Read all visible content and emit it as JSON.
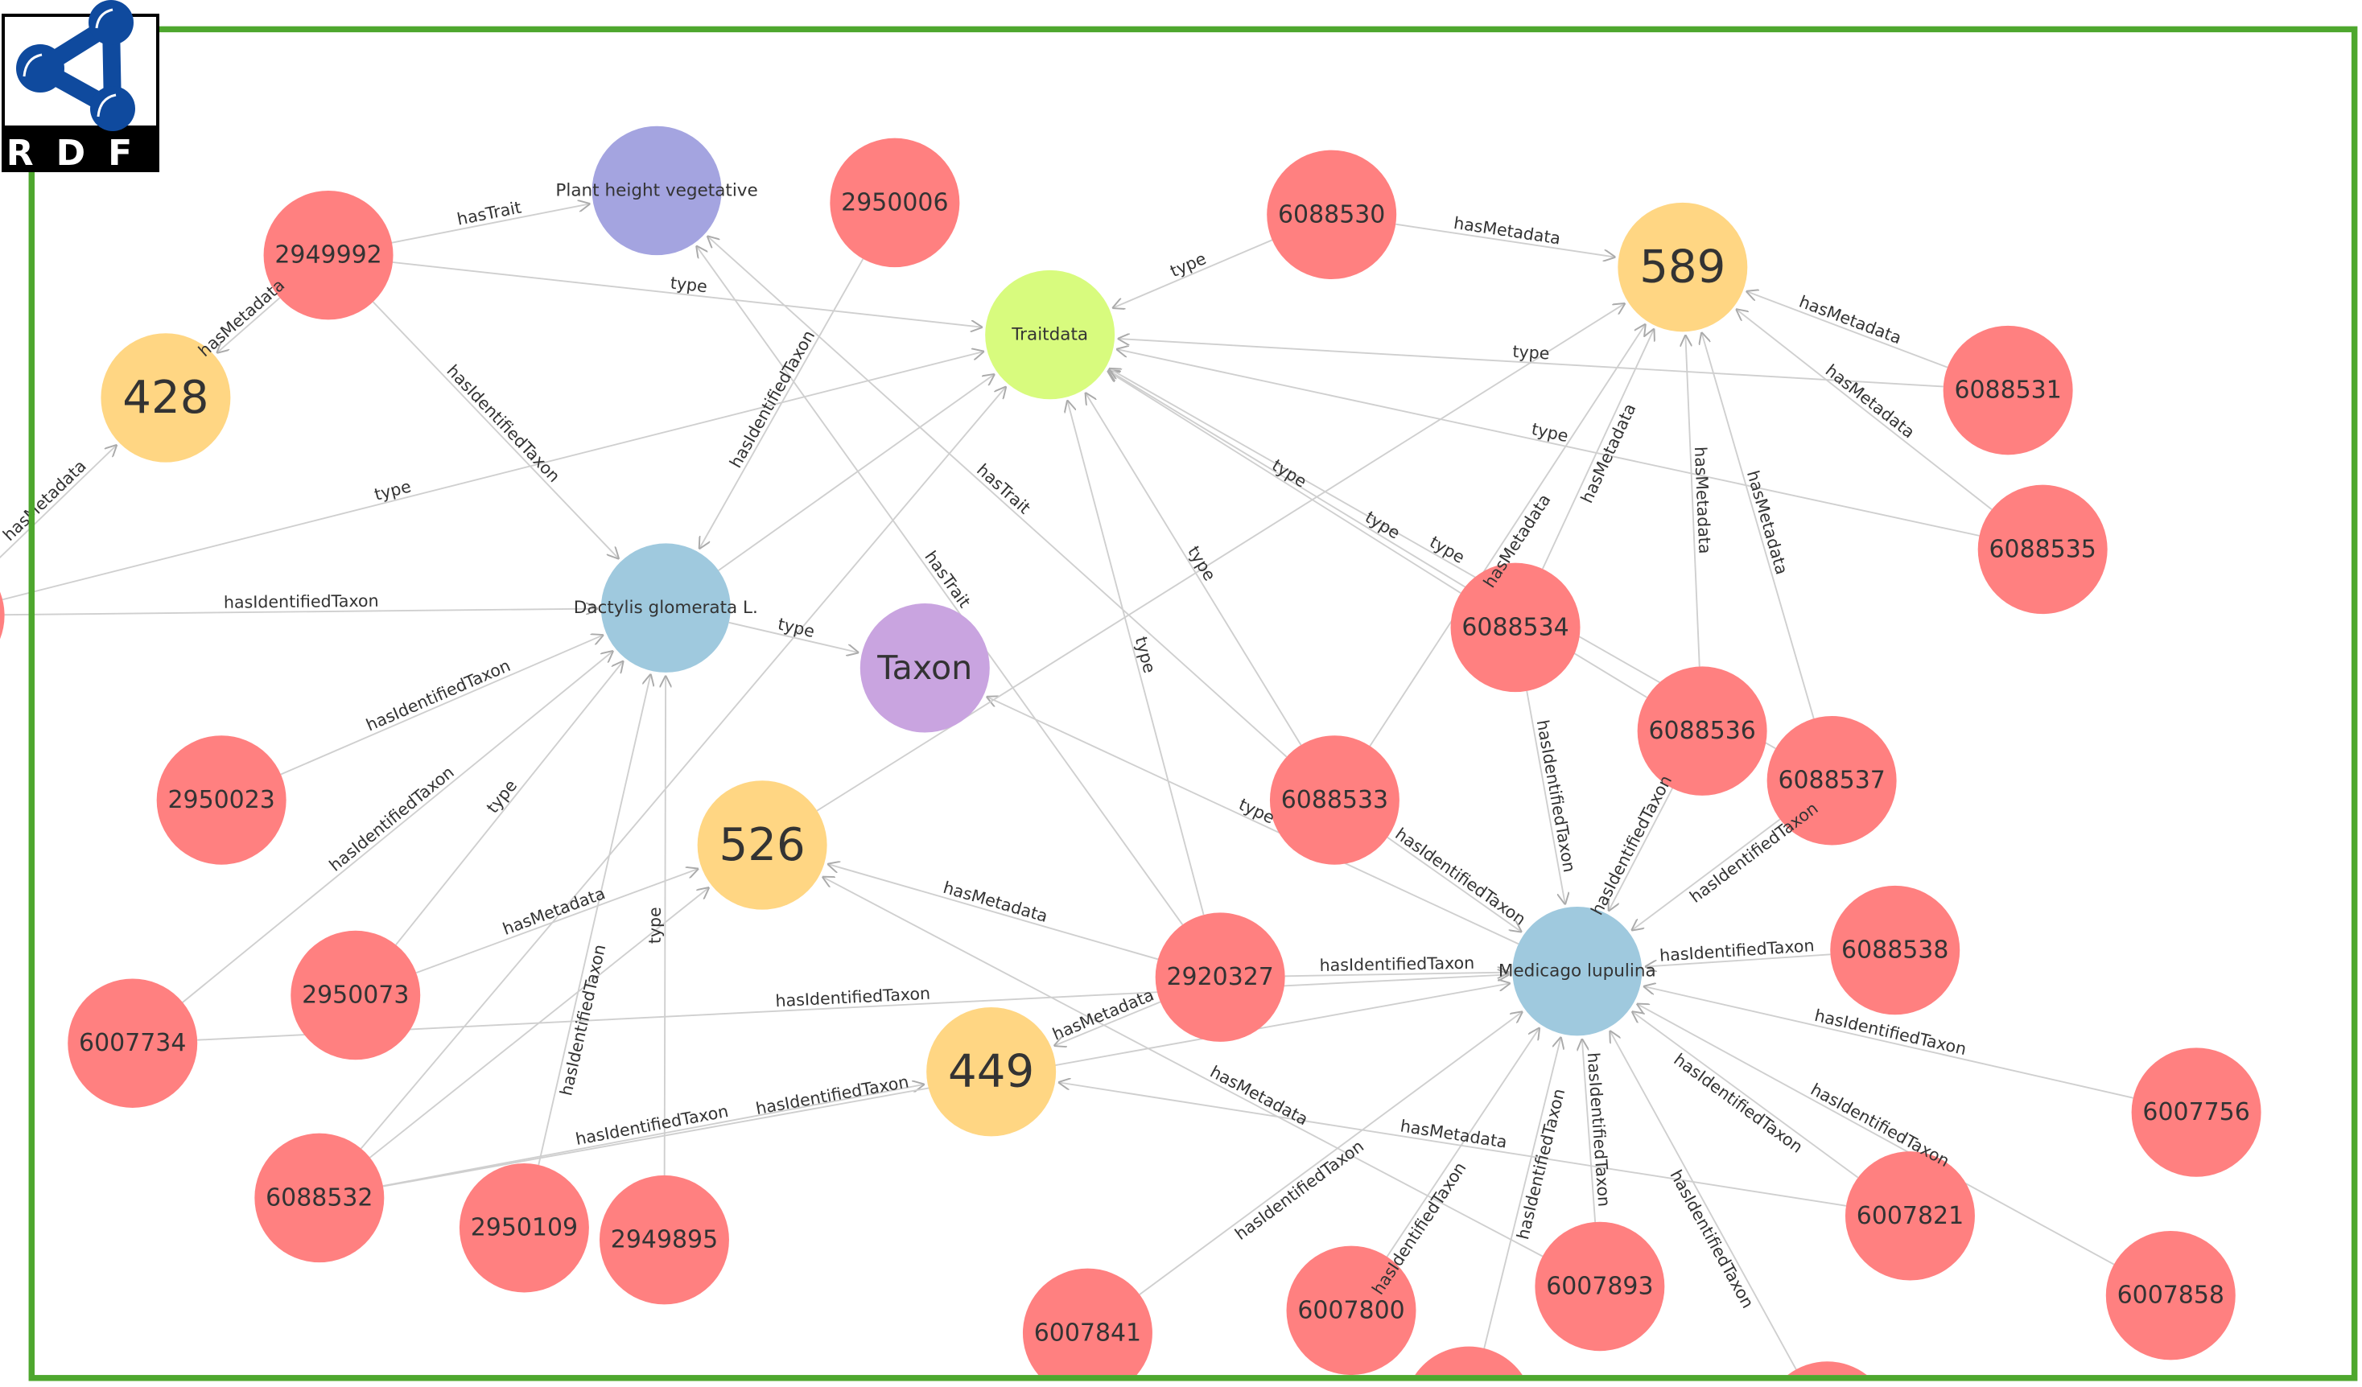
{
  "logo": {
    "text": "RDF",
    "color": "#0f4a9e"
  },
  "frame_color": "#4ea72e",
  "colors": {
    "resource": "#ff8080",
    "metadata": "#ffd683",
    "traitclass": "#d8fb7e",
    "trait": "#a4a4e0",
    "taxon": "#9fc9de",
    "taxonclass": "#c9a4e0",
    "edge": "#cfcfcf"
  },
  "nodes": [
    {
      "id": "2949992",
      "label": "2949992",
      "kind": "resource"
    },
    {
      "id": "ph",
      "label": "Plant height vegetative",
      "kind": "trait"
    },
    {
      "id": "2950006",
      "label": "2950006",
      "kind": "resource"
    },
    {
      "id": "traitdata",
      "label": "Traitdata",
      "kind": "traitclass"
    },
    {
      "id": "6088530",
      "label": "6088530",
      "kind": "resource"
    },
    {
      "id": "589",
      "label": "589",
      "kind": "metadata"
    },
    {
      "id": "6088531",
      "label": "6088531",
      "kind": "resource"
    },
    {
      "id": "428",
      "label": "428",
      "kind": "metadata"
    },
    {
      "id": "dactylis",
      "label": "Dactylis glomerata L.",
      "kind": "taxon"
    },
    {
      "id": "taxon",
      "label": "Taxon",
      "kind": "taxonclass"
    },
    {
      "id": "6088535",
      "label": "6088535",
      "kind": "resource"
    },
    {
      "id": "6088534",
      "label": "6088534",
      "kind": "resource"
    },
    {
      "id": "6088536",
      "label": "6088536",
      "kind": "resource"
    },
    {
      "id": "6088537",
      "label": "6088537",
      "kind": "resource"
    },
    {
      "id": "2950023",
      "label": "2950023",
      "kind": "resource"
    },
    {
      "id": "6088533",
      "label": "6088533",
      "kind": "resource"
    },
    {
      "id": "526",
      "label": "526",
      "kind": "metadata"
    },
    {
      "id": "2950073",
      "label": "2950073",
      "kind": "resource"
    },
    {
      "id": "2920327",
      "label": "2920327",
      "kind": "resource"
    },
    {
      "id": "medicago",
      "label": "Medicago lupulina",
      "kind": "taxon"
    },
    {
      "id": "6088538",
      "label": "6088538",
      "kind": "resource"
    },
    {
      "id": "6007734",
      "label": "6007734",
      "kind": "resource"
    },
    {
      "id": "449",
      "label": "449",
      "kind": "metadata"
    },
    {
      "id": "6007756",
      "label": "6007756",
      "kind": "resource"
    },
    {
      "id": "6088532",
      "label": "6088532",
      "kind": "resource"
    },
    {
      "id": "2950109",
      "label": "2950109",
      "kind": "resource"
    },
    {
      "id": "2949895",
      "label": "2949895",
      "kind": "resource"
    },
    {
      "id": "6007821",
      "label": "6007821",
      "kind": "resource"
    },
    {
      "id": "6007841",
      "label": "6007841",
      "kind": "resource"
    },
    {
      "id": "6007800",
      "label": "6007800",
      "kind": "resource"
    },
    {
      "id": "6007893",
      "label": "6007893",
      "kind": "resource"
    },
    {
      "id": "6007858",
      "label": "6007858",
      "kind": "resource"
    },
    {
      "id": "p1",
      "label": "",
      "kind": "resource"
    },
    {
      "id": "p2",
      "label": "",
      "kind": "resource"
    },
    {
      "id": "offleft",
      "label": "",
      "kind": "resource"
    }
  ],
  "edges": [
    {
      "s": "2949992",
      "t": "ph",
      "label": "hasTrait"
    },
    {
      "s": "2949992",
      "t": "traitdata",
      "label": "type"
    },
    {
      "s": "2949992",
      "t": "428",
      "label": "hasMetadata"
    },
    {
      "s": "2949992",
      "t": "dactylis",
      "label": "hasIdentifiedTaxon"
    },
    {
      "s": "2950006",
      "t": "dactylis",
      "label": "hasIdentifiedTaxon"
    },
    {
      "s": "offleft",
      "t": "428",
      "label": "hasMetadata"
    },
    {
      "s": "offleft",
      "t": "traitdata",
      "label": "type"
    },
    {
      "s": "offleft",
      "t": "dactylis",
      "label": "hasIdentifiedTaxon"
    },
    {
      "s": "6088530",
      "t": "traitdata",
      "label": "type"
    },
    {
      "s": "6088530",
      "t": "589",
      "label": "hasMetadata"
    },
    {
      "s": "6088531",
      "t": "589",
      "label": "hasMetadata"
    },
    {
      "s": "6088531",
      "t": "traitdata",
      "label": "type"
    },
    {
      "s": "6088535",
      "t": "589",
      "label": "hasMetadata"
    },
    {
      "s": "6088535",
      "t": "traitdata",
      "label": "type"
    },
    {
      "s": "6088534",
      "t": "traitdata",
      "label": "type"
    },
    {
      "s": "6088534",
      "t": "589",
      "label": "hasMetadata"
    },
    {
      "s": "6088534",
      "t": "medicago",
      "label": "hasIdentifiedTaxon"
    },
    {
      "s": "6088536",
      "t": "589",
      "label": "hasMetadata"
    },
    {
      "s": "6088536",
      "t": "traitdata",
      "label": "type"
    },
    {
      "s": "6088536",
      "t": "medicago",
      "label": "hasIdentifiedTaxon"
    },
    {
      "s": "6088537",
      "t": "589",
      "label": "hasMetadata"
    },
    {
      "s": "6088537",
      "t": "traitdata",
      "label": "type"
    },
    {
      "s": "6088537",
      "t": "medicago",
      "label": "hasIdentifiedTaxon"
    },
    {
      "s": "6088533",
      "t": "traitdata",
      "label": "type"
    },
    {
      "s": "6088533",
      "t": "589",
      "label": "hasMetadata"
    },
    {
      "s": "6088533",
      "t": "medicago",
      "label": "hasIdentifiedTaxon"
    },
    {
      "s": "6088533",
      "t": "ph",
      "label": "hasTrait"
    },
    {
      "s": "dactylis",
      "t": "taxon",
      "label": "type"
    },
    {
      "s": "dactylis",
      "t": "traitdata",
      "label": ""
    },
    {
      "s": "medicago",
      "t": "taxon",
      "label": "type"
    },
    {
      "s": "2950023",
      "t": "dactylis",
      "label": "hasIdentifiedTaxon"
    },
    {
      "s": "6007734",
      "t": "dactylis",
      "label": "hasIdentifiedTaxon"
    },
    {
      "s": "6007734",
      "t": "medicago",
      "label": "hasIdentifiedTaxon"
    },
    {
      "s": "2950073",
      "t": "526",
      "label": "hasMetadata"
    },
    {
      "s": "2950073",
      "t": "dactylis",
      "label": "type"
    },
    {
      "s": "6088532",
      "t": "449",
      "label": "hasIdentifiedTaxon"
    },
    {
      "s": "6088532",
      "t": "526",
      "label": ""
    },
    {
      "s": "6088532",
      "t": "traitdata",
      "label": ""
    },
    {
      "s": "526",
      "t": "589",
      "label": ""
    },
    {
      "s": "2950109",
      "t": "dactylis",
      "label": "hasIdentifiedTaxon"
    },
    {
      "s": "2949895",
      "t": "dactylis",
      "label": "type"
    },
    {
      "s": "2920327",
      "t": "medicago",
      "label": "hasIdentifiedTaxon"
    },
    {
      "s": "2920327",
      "t": "526",
      "label": "hasMetadata"
    },
    {
      "s": "2920327",
      "t": "449",
      "label": "hasMetadata"
    },
    {
      "s": "2920327",
      "t": "traitdata",
      "label": "type"
    },
    {
      "s": "2920327",
      "t": "ph",
      "label": "hasTrait"
    },
    {
      "s": "6007893",
      "t": "526",
      "label": "hasMetadata"
    },
    {
      "s": "6007821",
      "t": "449",
      "label": "hasMetadata"
    },
    {
      "s": "6088538",
      "t": "medicago",
      "label": "hasIdentifiedTaxon"
    },
    {
      "s": "6007756",
      "t": "medicago",
      "label": "hasIdentifiedTaxon"
    },
    {
      "s": "6007821",
      "t": "medicago",
      "label": "hasIdentifiedTaxon"
    },
    {
      "s": "6007858",
      "t": "medicago",
      "label": "hasIdentifiedTaxon"
    },
    {
      "s": "6007841",
      "t": "medicago",
      "label": "hasIdentifiedTaxon"
    },
    {
      "s": "6007800",
      "t": "medicago",
      "label": "hasIdentifiedTaxon"
    },
    {
      "s": "6007893",
      "t": "medicago",
      "label": "hasIdentifiedTaxon"
    },
    {
      "s": "p1",
      "t": "medicago",
      "label": "hasIdentifiedTaxon"
    },
    {
      "s": "p2",
      "t": "medicago",
      "label": "hasIdentifiedTaxon"
    },
    {
      "s": "6088532",
      "t": "medicago",
      "label": "hasIdentifiedTaxon"
    }
  ]
}
